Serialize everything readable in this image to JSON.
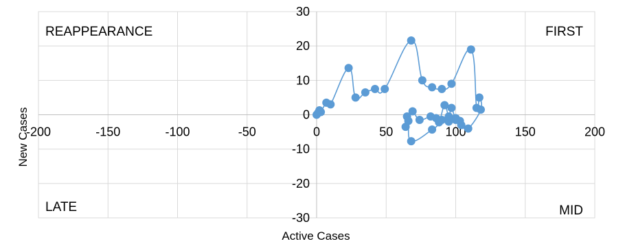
{
  "chart_data": {
    "type": "scatter",
    "xlabel": "Active Cases",
    "ylabel": "New Cases",
    "xlim": [
      -200,
      200
    ],
    "ylim": [
      -30,
      30
    ],
    "x_ticks": [
      -200,
      -150,
      -100,
      -50,
      0,
      50,
      100,
      150,
      200
    ],
    "y_ticks": [
      -30,
      -20,
      -10,
      0,
      10,
      20,
      30
    ],
    "grid": true,
    "axes_cross_at_origin": true,
    "smoothed_line": true,
    "series_color": "#5b9bd5",
    "quadrant_labels": {
      "top_left": "REAPPEARANCE",
      "top_right": "FIRST",
      "bottom_left": "LATE",
      "bottom_right": "MID"
    },
    "series": [
      {
        "points": [
          {
            "x": 0,
            "y": 0
          },
          {
            "x": 1,
            "y": 0.5
          },
          {
            "x": 2,
            "y": 1.3
          },
          {
            "x": 3,
            "y": 0.8
          },
          {
            "x": 7,
            "y": 3.5
          },
          {
            "x": 10,
            "y": 3
          },
          {
            "x": 23,
            "y": 13.6
          },
          {
            "x": 28,
            "y": 5
          },
          {
            "x": 35,
            "y": 6.5
          },
          {
            "x": 42,
            "y": 7.5
          },
          {
            "x": 49,
            "y": 7.5
          },
          {
            "x": 68,
            "y": 21.6
          },
          {
            "x": 76,
            "y": 10
          },
          {
            "x": 83,
            "y": 8
          },
          {
            "x": 90,
            "y": 7.5
          },
          {
            "x": 97,
            "y": 9
          },
          {
            "x": 111,
            "y": 19
          },
          {
            "x": 115,
            "y": 2
          },
          {
            "x": 117,
            "y": 5
          },
          {
            "x": 118,
            "y": 1.5
          },
          {
            "x": 109,
            "y": -4
          },
          {
            "x": 104,
            "y": -3
          },
          {
            "x": 100,
            "y": -1
          },
          {
            "x": 95,
            "y": -2
          },
          {
            "x": 90,
            "y": -1.5
          },
          {
            "x": 86,
            "y": -1
          },
          {
            "x": 82,
            "y": -0.5
          },
          {
            "x": 74,
            "y": -1.5
          },
          {
            "x": 69,
            "y": 1
          },
          {
            "x": 65,
            "y": -0.5
          },
          {
            "x": 64,
            "y": -3.5
          },
          {
            "x": 66,
            "y": -1.8
          },
          {
            "x": 68,
            "y": -7.7
          },
          {
            "x": 83,
            "y": -4.3
          },
          {
            "x": 88,
            "y": -2.2
          },
          {
            "x": 92,
            "y": 2.8
          },
          {
            "x": 95,
            "y": -0.5
          },
          {
            "x": 97,
            "y": 2
          },
          {
            "x": 100,
            "y": -1.5
          },
          {
            "x": 103,
            "y": -1.8
          },
          {
            "x": 100,
            "y": -1
          }
        ]
      }
    ]
  }
}
